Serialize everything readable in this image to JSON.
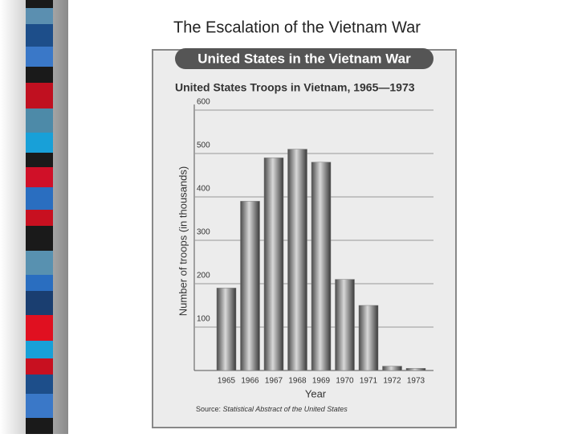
{
  "slide_title": "The Escalation of the Vietnam War",
  "chart_data": {
    "type": "bar",
    "banner": "United States in the Vietnam War",
    "title": "United States Troops in Vietnam, 1965—1973",
    "y_label": "Number of troops (in thousands)",
    "x_label": "Year",
    "source_prefix": "Source:",
    "source": "Statistical Abstract of the United States",
    "categories": [
      "1965",
      "1966",
      "1967",
      "1968",
      "1969",
      "1970",
      "1971",
      "1972",
      "1973"
    ],
    "values": [
      190,
      390,
      490,
      510,
      480,
      210,
      150,
      10,
      5
    ],
    "color": "#7a7a7a",
    "ylim": [
      0,
      600
    ],
    "yticks": [
      100,
      200,
      300,
      400,
      500,
      600
    ],
    "grid": true
  }
}
